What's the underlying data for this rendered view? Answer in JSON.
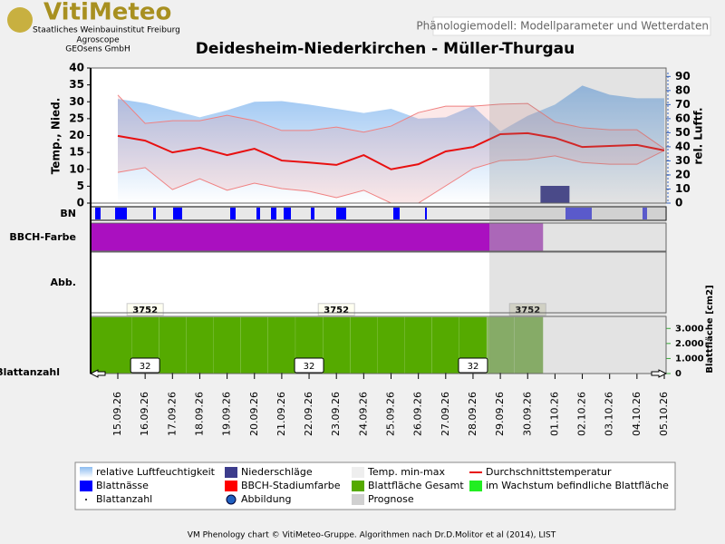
{
  "header": {
    "logo": "VitiMeteo",
    "org1": "Staatliches Weinbauinstitut Freiburg",
    "org2": "Agroscope",
    "org3": "GEOsens GmbH",
    "tab": "Phänologiemodell: Modellparameter und Wetterdaten"
  },
  "panels": {
    "bn": "BN",
    "bbch": "BBCH-Farbe",
    "abb": "Abb.",
    "leaf_count": "Blattanzahl"
  },
  "chart_data": [
    {
      "type": "line",
      "title": "Deidesheim-Niederkirchen - Müller-Thurgau",
      "ylabel": "Temp., Nied.",
      "y2label": "rel. Luftf.",
      "x": [
        "15.09.26",
        "16.09.26",
        "17.09.26",
        "18.09.26",
        "19.09.26",
        "20.09.26",
        "21.09.26",
        "22.09.26",
        "23.09.26",
        "24.09.26",
        "25.09.26",
        "26.09.26",
        "27.09.26",
        "28.09.26",
        "29.09.26",
        "30.09.26",
        "01.10.26",
        "02.10.26",
        "03.10.26",
        "04.10.26",
        "05.10.26"
      ],
      "ylim": [
        0,
        40
      ],
      "yticks": [
        0,
        5,
        10,
        15,
        20,
        25,
        30,
        35,
        40
      ],
      "y2lim": [
        0,
        96
      ],
      "y2ticks": [
        0,
        10,
        20,
        30,
        40,
        50,
        60,
        70,
        80,
        90
      ],
      "series": [
        {
          "name": "relative Luftfeuchtigkeit",
          "color": "#8cbcf0",
          "axis": "y2",
          "values": [
            74,
            71,
            66,
            61,
            66,
            72,
            72.5,
            70,
            67,
            64,
            67,
            60,
            61,
            69,
            51,
            62,
            70,
            83.5,
            77,
            74.5,
            74.5
          ]
        },
        {
          "name": "Niederschläge",
          "color": "#3c3c8c",
          "values": [
            0,
            0,
            0,
            0,
            0,
            0,
            0,
            0,
            0,
            0,
            0,
            0,
            0,
            0,
            0,
            0,
            5.1,
            0,
            0,
            0,
            0
          ]
        },
        {
          "name": "Temp. min-max",
          "color": "#f08080",
          "min": [
            9.1,
            10.5,
            4,
            7.2,
            3.8,
            5.9,
            4.3,
            3.5,
            1.6,
            3.8,
            0,
            0,
            5.1,
            10.2,
            12.6,
            12.9,
            14,
            12,
            11.5,
            11.5,
            15.6
          ],
          "max": [
            32,
            23.6,
            24.4,
            24.4,
            26,
            24.4,
            21.5,
            21.5,
            22.5,
            21,
            22.8,
            26.8,
            28.7,
            28.7,
            29.3,
            29.5,
            24,
            22.3,
            21.7,
            21.7,
            16.1
          ]
        },
        {
          "name": "Durchschnittstemperatur",
          "color": "#e81010",
          "values": [
            19.9,
            18.5,
            15,
            16.4,
            14.2,
            16.1,
            12.6,
            12,
            11.3,
            14.2,
            10,
            11.5,
            15.3,
            16.6,
            20.4,
            20.7,
            19.3,
            16.6,
            16.9,
            17.2,
            15.6
          ]
        }
      ]
    },
    {
      "type": "area",
      "ylabel": "Blattfläche [cm2]",
      "ylim": [
        0,
        3800
      ],
      "yticks": [
        0,
        {
          "value": 1000,
          "label": "1.000"
        },
        {
          "value": 2000,
          "label": "2.000"
        },
        {
          "value": 3000,
          "label": "3.000"
        }
      ],
      "series": [
        {
          "name": "Blattfläche Gesamt",
          "color": "#55aa00",
          "values": [
            3752,
            3752,
            3752,
            3752,
            3752,
            3752,
            3752,
            3752,
            3752,
            3752,
            3752,
            3752,
            3752,
            3752,
            3752,
            3752,
            null,
            null,
            null,
            null,
            null
          ]
        },
        {
          "name": "Blattanzahl",
          "color": "#000000",
          "values": [
            32,
            32,
            32,
            32,
            32,
            32,
            32,
            32,
            32,
            32,
            32,
            32,
            32,
            32,
            32,
            32,
            null,
            null,
            null,
            null,
            null
          ]
        }
      ]
    }
  ],
  "legend_items": [
    {
      "name": "Blattnässe",
      "color": "#0000ff"
    },
    {
      "name": "BBCH-Stadiumfarbe",
      "color": "#ff0000"
    },
    {
      "name": "im Wachstum befindliche Blattfläche",
      "color": "#22ee22"
    },
    {
      "name": "Abbildung",
      "color": "#2060c0"
    },
    {
      "name": "Prognose",
      "color": "#d0d0d0"
    }
  ],
  "footer": "VM Phenology chart © VitiMeteo-Gruppe. Algorithmen nach Dr.D.Molitor et al (2014), LIST"
}
